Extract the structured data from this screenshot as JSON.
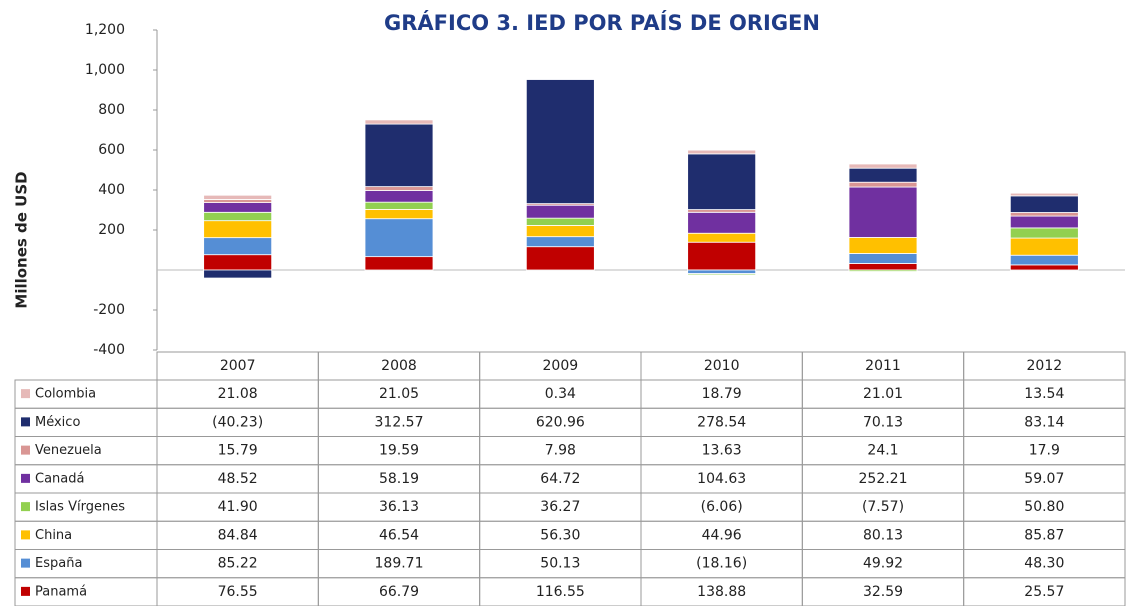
{
  "chart_data": {
    "type": "stacked_bar",
    "title": "GRÁFICO 3.  IED POR PAÍS DE ORIGEN",
    "y_label": "Millones de USD",
    "categories": [
      "2007",
      "2008",
      "2009",
      "2010",
      "2011",
      "2012"
    ],
    "ylim": [
      -400,
      1200
    ],
    "yticks": [
      -400,
      -200,
      200,
      400,
      600,
      800,
      {
        "value": 1000,
        "label": "1,000"
      },
      {
        "value": 1200,
        "label": "1,200"
      }
    ],
    "series": [
      {
        "name": "Colombia",
        "color": "#e6b9b8",
        "values": [
          21.08,
          21.05,
          0.34,
          18.79,
          21.01,
          13.54
        ],
        "value_labels": [
          "21.08",
          "21.05",
          "0.34",
          "18.79",
          "21.01",
          "13.54"
        ]
      },
      {
        "name": "México",
        "color": "#1f2d6e",
        "values": [
          -40.23,
          312.57,
          620.96,
          278.54,
          70.13,
          83.14
        ],
        "value_labels": [
          "(40.23)",
          "312.57",
          "620.96",
          "278.54",
          "70.13",
          "83.14"
        ]
      },
      {
        "name": "Venezuela",
        "color": "#d99694",
        "values": [
          15.79,
          19.59,
          7.98,
          13.63,
          24.1,
          17.9
        ],
        "value_labels": [
          "15.79",
          "19.59",
          "7.98",
          "13.63",
          "24.1",
          "17.9"
        ]
      },
      {
        "name": "Canadá",
        "color": "#7030a0",
        "values": [
          48.52,
          58.19,
          64.72,
          104.63,
          252.21,
          59.07
        ],
        "value_labels": [
          "48.52",
          "58.19",
          "64.72",
          "104.63",
          "252.21",
          "59.07"
        ]
      },
      {
        "name": "Islas Vírgenes",
        "color": "#92d050",
        "values": [
          41.9,
          36.13,
          36.27,
          -6.06,
          -7.57,
          50.8
        ],
        "value_labels": [
          "41.90",
          "36.13",
          "36.27",
          "(6.06)",
          "(7.57)",
          "50.80"
        ]
      },
      {
        "name": "China",
        "color": "#ffc000",
        "values": [
          84.84,
          46.54,
          56.3,
          44.96,
          80.13,
          85.87
        ],
        "value_labels": [
          "84.84",
          "46.54",
          "56.30",
          "44.96",
          "80.13",
          "85.87"
        ]
      },
      {
        "name": "España",
        "color": "#558ed5",
        "values": [
          85.22,
          189.71,
          50.13,
          -18.16,
          49.92,
          48.3
        ],
        "value_labels": [
          "85.22",
          "189.71",
          "50.13",
          "(18.16)",
          "49.92",
          "48.30"
        ]
      },
      {
        "name": "Panamá",
        "color": "#c00000",
        "values": [
          76.55,
          66.79,
          116.55,
          138.88,
          32.59,
          25.57
        ],
        "value_labels": [
          "76.55",
          "66.79",
          "116.55",
          "138.88",
          "32.59",
          "25.57"
        ]
      }
    ]
  }
}
